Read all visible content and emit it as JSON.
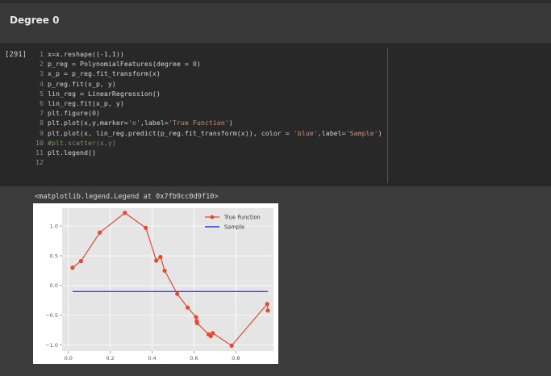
{
  "heading": "Degree 0",
  "cell": {
    "prompt": "[291]",
    "lines": [
      {
        "num": "1",
        "parts": [
          {
            "t": "x=x.reshape((-1,1))",
            "k": "p"
          }
        ]
      },
      {
        "num": "2",
        "parts": [
          {
            "t": "p_reg = PolynomialFeatures(degree = ",
            "k": "p"
          },
          {
            "t": "0",
            "k": "n"
          },
          {
            "t": ")",
            "k": "p"
          }
        ]
      },
      {
        "num": "3",
        "parts": [
          {
            "t": "x_p = p_reg.fit_transform(x)",
            "k": "p"
          }
        ]
      },
      {
        "num": "4",
        "parts": [
          {
            "t": "p_reg.fit(x_p, y)",
            "k": "p"
          }
        ]
      },
      {
        "num": "5",
        "parts": [
          {
            "t": "lin_reg = LinearRegression()",
            "k": "p"
          }
        ]
      },
      {
        "num": "6",
        "parts": [
          {
            "t": "lin_reg.fit(x_p, y)",
            "k": "p"
          }
        ]
      },
      {
        "num": "7",
        "parts": [
          {
            "t": "plt.figure(",
            "k": "p"
          },
          {
            "t": "0",
            "k": "n"
          },
          {
            "t": ")",
            "k": "p"
          }
        ]
      },
      {
        "num": "8",
        "parts": [
          {
            "t": "plt.plot(x,y,marker=",
            "k": "p"
          },
          {
            "t": "'o'",
            "k": "s"
          },
          {
            "t": ",label=",
            "k": "p"
          },
          {
            "t": "'True Function'",
            "k": "s"
          },
          {
            "t": ")",
            "k": "p"
          }
        ]
      },
      {
        "num": "9",
        "parts": [
          {
            "t": "plt.plot(x, lin_reg.predict(p_reg.fit_transform(x)), color = ",
            "k": "p"
          },
          {
            "t": "'blue'",
            "k": "s"
          },
          {
            "t": ",label=",
            "k": "p"
          },
          {
            "t": "'Sample'",
            "k": "s"
          },
          {
            "t": ")",
            "k": "p"
          }
        ]
      },
      {
        "num": "10",
        "parts": [
          {
            "t": "#plt.scatter(x,y)",
            "k": "c"
          }
        ]
      },
      {
        "num": "11",
        "parts": [
          {
            "t": "plt.legend()",
            "k": "p"
          }
        ]
      },
      {
        "num": "12",
        "parts": []
      }
    ]
  },
  "output_text": "<matplotlib.legend.Legend at 0x7fb9cc0d9f10>",
  "colors": {
    "line1": "#e24a33",
    "line2": "#0000ff",
    "plot_bg": "#e5e5e5",
    "grid": "#ffffff"
  },
  "chart_data": {
    "type": "line",
    "xlim": [
      -0.03,
      0.98
    ],
    "ylim": [
      -1.1,
      1.3
    ],
    "xticks": [
      "0.0",
      "0.2",
      "0.4",
      "0.6",
      "0.8"
    ],
    "yticks": [
      "1.0",
      "0.5",
      "0.0",
      "−0.5",
      "−1.0"
    ],
    "legend_position": "upper-right",
    "series": [
      {
        "name": "True Function",
        "marker": "o",
        "x": [
          0.02,
          0.06,
          0.15,
          0.27,
          0.37,
          0.42,
          0.44,
          0.46,
          0.52,
          0.57,
          0.61,
          0.613,
          0.615,
          0.67,
          0.68,
          0.69,
          0.78,
          0.95,
          0.953
        ],
        "y": [
          0.3,
          0.41,
          0.89,
          1.22,
          0.97,
          0.42,
          0.48,
          0.25,
          -0.14,
          -0.37,
          -0.53,
          -0.6,
          -0.63,
          -0.82,
          -0.85,
          -0.8,
          -1.01,
          -0.31,
          -0.42
        ]
      },
      {
        "name": "Sample",
        "x": [
          0.02,
          0.953
        ],
        "y": [
          -0.1,
          -0.1
        ]
      }
    ]
  }
}
